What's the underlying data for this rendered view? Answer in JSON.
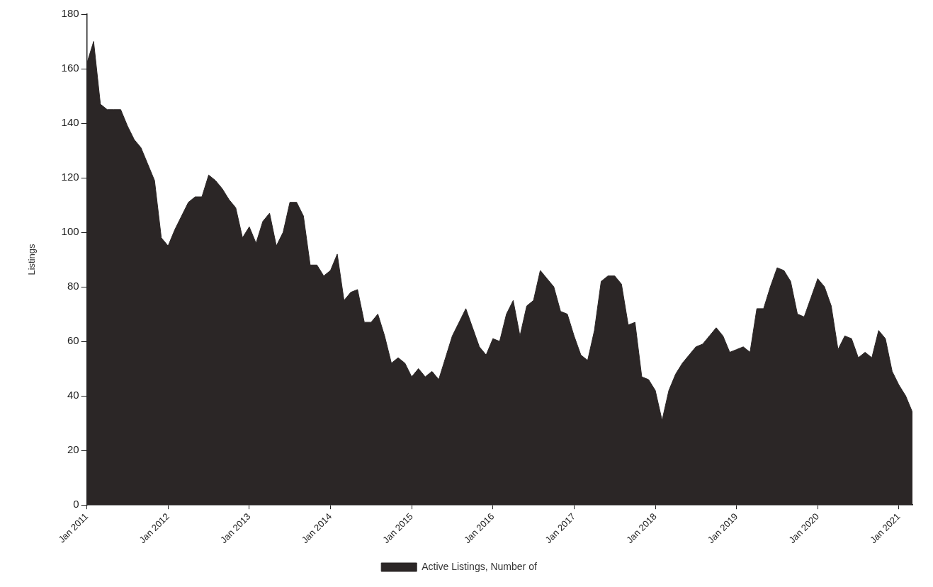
{
  "chart_data": {
    "type": "area",
    "ylabel": "Listings",
    "legend": "bottom",
    "grid": false,
    "x": [
      "2011-01",
      "2011-02",
      "2011-03",
      "2011-04",
      "2011-05",
      "2011-06",
      "2011-07",
      "2011-08",
      "2011-09",
      "2011-10",
      "2011-11",
      "2011-12",
      "2012-01",
      "2012-02",
      "2012-03",
      "2012-04",
      "2012-05",
      "2012-06",
      "2012-07",
      "2012-08",
      "2012-09",
      "2012-10",
      "2012-11",
      "2012-12",
      "2013-01",
      "2013-02",
      "2013-03",
      "2013-04",
      "2013-05",
      "2013-06",
      "2013-07",
      "2013-08",
      "2013-09",
      "2013-10",
      "2013-11",
      "2013-12",
      "2014-01",
      "2014-02",
      "2014-03",
      "2014-04",
      "2014-05",
      "2014-06",
      "2014-07",
      "2014-08",
      "2014-09",
      "2014-10",
      "2014-11",
      "2014-12",
      "2015-01",
      "2015-02",
      "2015-03",
      "2015-04",
      "2015-05",
      "2015-06",
      "2015-07",
      "2015-08",
      "2015-09",
      "2015-10",
      "2015-11",
      "2015-12",
      "2016-01",
      "2016-02",
      "2016-03",
      "2016-04",
      "2016-05",
      "2016-06",
      "2016-07",
      "2016-08",
      "2016-09",
      "2016-10",
      "2016-11",
      "2016-12",
      "2017-01",
      "2017-02",
      "2017-03",
      "2017-04",
      "2017-05",
      "2017-06",
      "2017-07",
      "2017-08",
      "2017-09",
      "2017-10",
      "2017-11",
      "2017-12",
      "2018-01",
      "2018-02",
      "2018-03",
      "2018-04",
      "2018-05",
      "2018-06",
      "2018-07",
      "2018-08",
      "2018-09",
      "2018-10",
      "2018-11",
      "2018-12",
      "2019-01",
      "2019-02",
      "2019-03",
      "2019-04",
      "2019-05",
      "2019-06",
      "2019-07",
      "2019-08",
      "2019-09",
      "2019-10",
      "2019-11",
      "2019-12",
      "2020-01",
      "2020-02",
      "2020-03",
      "2020-04",
      "2020-05",
      "2020-06",
      "2020-07",
      "2020-08",
      "2020-09",
      "2020-10",
      "2020-11",
      "2020-12",
      "2021-01",
      "2021-02",
      "2021-03"
    ],
    "series": [
      {
        "name": "Active Listings, Number of",
        "color": "#2b2626",
        "values": [
          162,
          170,
          147,
          145,
          145,
          145,
          139,
          134,
          131,
          125,
          119,
          98,
          95,
          101,
          106,
          111,
          113,
          113,
          121,
          119,
          116,
          112,
          109,
          98,
          102,
          96,
          104,
          107,
          95,
          100,
          111,
          111,
          106,
          88,
          88,
          84,
          86,
          92,
          75,
          78,
          79,
          67,
          67,
          70,
          62,
          52,
          54,
          52,
          47,
          50,
          47,
          49,
          46,
          54,
          62,
          67,
          72,
          65,
          58,
          55,
          61,
          60,
          70,
          75,
          62,
          73,
          75,
          86,
          83,
          80,
          71,
          70,
          62,
          55,
          53,
          64,
          82,
          84,
          84,
          81,
          66,
          67,
          47,
          46,
          42,
          31,
          42,
          48,
          52,
          55,
          58,
          59,
          62,
          65,
          62,
          56,
          57,
          58,
          56,
          72,
          72,
          80,
          87,
          86,
          82,
          70,
          69,
          76,
          83,
          80,
          73,
          57,
          62,
          61,
          54,
          56,
          54,
          64,
          61,
          49,
          44,
          40,
          34
        ]
      }
    ],
    "xlim": [
      "2011-01",
      "2021-03"
    ],
    "xticks": [
      {
        "value": "2011-01",
        "label": "Jan 2011"
      },
      {
        "value": "2012-01",
        "label": "Jan 2012"
      },
      {
        "value": "2013-01",
        "label": "Jan 2013"
      },
      {
        "value": "2014-01",
        "label": "Jan 2014"
      },
      {
        "value": "2015-01",
        "label": "Jan 2015"
      },
      {
        "value": "2016-01",
        "label": "Jan 2016"
      },
      {
        "value": "2017-01",
        "label": "Jan 2017"
      },
      {
        "value": "2018-01",
        "label": "Jan 2018"
      },
      {
        "value": "2019-01",
        "label": "Jan 2019"
      },
      {
        "value": "2020-01",
        "label": "Jan 2020"
      },
      {
        "value": "2021-01",
        "label": "Jan 2021"
      }
    ],
    "ylim": [
      0,
      180
    ],
    "yticks": [
      0,
      20,
      40,
      60,
      80,
      100,
      120,
      140,
      160,
      180
    ]
  }
}
